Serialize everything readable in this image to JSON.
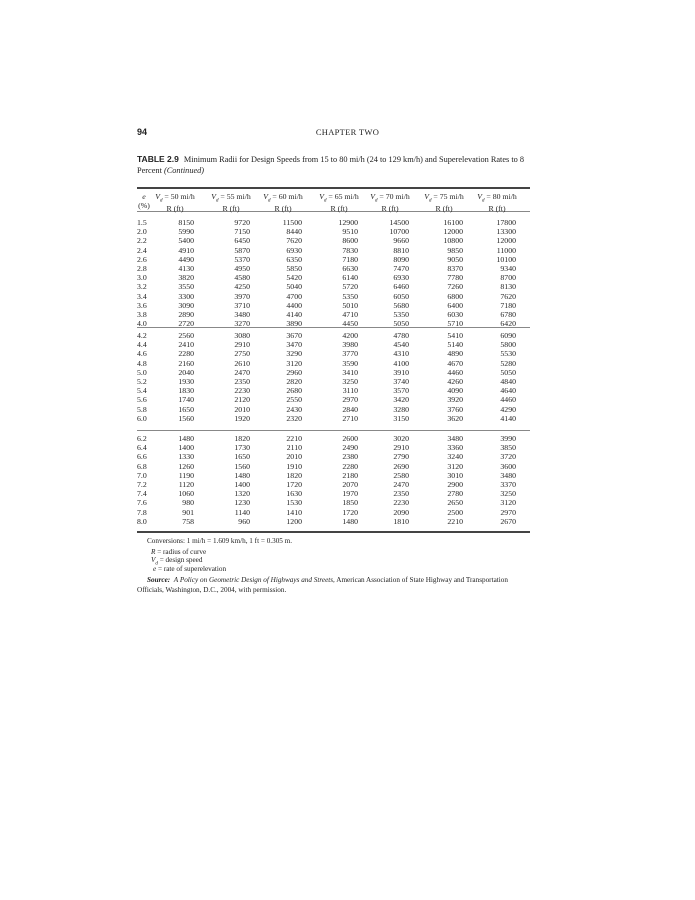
{
  "page_number": "94",
  "running_head": "CHAPTER TWO",
  "table": {
    "label": "TABLE 2.9",
    "caption": "Minimum Radii for Design Speeds from 15 to 80 mi/h (24 to 129 km/h) and Superelevation Rates to 8 Percent",
    "caption_suffix": "(Continued)",
    "first_header": {
      "top": "e",
      "bottom": "(%)"
    },
    "columns": [
      {
        "speed": "= 50 mi/h",
        "unit": "R (ft)"
      },
      {
        "speed": "= 55 mi/h",
        "unit": "R (ft)"
      },
      {
        "speed": "= 60 mi/h",
        "unit": "R (ft)"
      },
      {
        "speed": "= 65 mi/h",
        "unit": "R (ft)"
      },
      {
        "speed": "= 70 mi/h",
        "unit": "R (ft)"
      },
      {
        "speed": "= 75 mi/h",
        "unit": "R (ft)"
      },
      {
        "speed": "= 80 mi/h",
        "unit": "R (ft)"
      }
    ],
    "groups": [
      [
        [
          "1.5",
          "8150",
          "9720",
          "11500",
          "12900",
          "14500",
          "16100",
          "17800"
        ],
        [
          "2.0",
          "5990",
          "7150",
          "8440",
          "9510",
          "10700",
          "12000",
          "13300"
        ],
        [
          "2.2",
          "5400",
          "6450",
          "7620",
          "8600",
          "9660",
          "10800",
          "12000"
        ],
        [
          "2.4",
          "4910",
          "5870",
          "6930",
          "7830",
          "8810",
          "9850",
          "11000"
        ],
        [
          "2.6",
          "4490",
          "5370",
          "6350",
          "7180",
          "8090",
          "9050",
          "10100"
        ],
        [
          "2.8",
          "4130",
          "4950",
          "5850",
          "6630",
          "7470",
          "8370",
          "9340"
        ],
        [
          "3.0",
          "3820",
          "4580",
          "5420",
          "6140",
          "6930",
          "7780",
          "8700"
        ],
        [
          "3.2",
          "3550",
          "4250",
          "5040",
          "5720",
          "6460",
          "7260",
          "8130"
        ],
        [
          "3.4",
          "3300",
          "3970",
          "4700",
          "5350",
          "6050",
          "6800",
          "7620"
        ],
        [
          "3.6",
          "3090",
          "3710",
          "4400",
          "5010",
          "5680",
          "6400",
          "7180"
        ],
        [
          "3.8",
          "2890",
          "3480",
          "4140",
          "4710",
          "5350",
          "6030",
          "6780"
        ],
        [
          "4.0",
          "2720",
          "3270",
          "3890",
          "4450",
          "5050",
          "5710",
          "6420"
        ]
      ],
      [
        [
          "4.2",
          "2560",
          "3080",
          "3670",
          "4200",
          "4780",
          "5410",
          "6090"
        ],
        [
          "4.4",
          "2410",
          "2910",
          "3470",
          "3980",
          "4540",
          "5140",
          "5800"
        ],
        [
          "4.6",
          "2280",
          "2750",
          "3290",
          "3770",
          "4310",
          "4890",
          "5530"
        ],
        [
          "4.8",
          "2160",
          "2610",
          "3120",
          "3590",
          "4100",
          "4670",
          "5280"
        ],
        [
          "5.0",
          "2040",
          "2470",
          "2960",
          "3410",
          "3910",
          "4460",
          "5050"
        ],
        [
          "5.2",
          "1930",
          "2350",
          "2820",
          "3250",
          "3740",
          "4260",
          "4840"
        ],
        [
          "5.4",
          "1830",
          "2230",
          "2680",
          "3110",
          "3570",
          "4090",
          "4640"
        ],
        [
          "5.6",
          "1740",
          "2120",
          "2550",
          "2970",
          "3420",
          "3920",
          "4460"
        ],
        [
          "5.8",
          "1650",
          "2010",
          "2430",
          "2840",
          "3280",
          "3760",
          "4290"
        ],
        [
          "6.0",
          "1560",
          "1920",
          "2320",
          "2710",
          "3150",
          "3620",
          "4140"
        ]
      ],
      [
        [
          "6.2",
          "1480",
          "1820",
          "2210",
          "2600",
          "3020",
          "3480",
          "3990"
        ],
        [
          "6.4",
          "1400",
          "1730",
          "2110",
          "2490",
          "2910",
          "3360",
          "3850"
        ],
        [
          "6.6",
          "1330",
          "1650",
          "2010",
          "2380",
          "2790",
          "3240",
          "3720"
        ],
        [
          "6.8",
          "1260",
          "1560",
          "1910",
          "2280",
          "2690",
          "3120",
          "3600"
        ],
        [
          "7.0",
          "1190",
          "1480",
          "1820",
          "2180",
          "2580",
          "3010",
          "3480"
        ],
        [
          "7.2",
          "1120",
          "1400",
          "1720",
          "2070",
          "2470",
          "2900",
          "3370"
        ],
        [
          "7.4",
          "1060",
          "1320",
          "1630",
          "1970",
          "2350",
          "2780",
          "3250"
        ],
        [
          "7.6",
          "980",
          "1230",
          "1530",
          "1850",
          "2230",
          "2650",
          "3120"
        ],
        [
          "7.8",
          "901",
          "1140",
          "1410",
          "1720",
          "2090",
          "2500",
          "2970"
        ],
        [
          "8.0",
          "758",
          "960",
          "1200",
          "1480",
          "1810",
          "2210",
          "2670"
        ]
      ]
    ]
  },
  "notes": {
    "conversions": "Conversions: 1 mi/h = 1.609 km/h, 1 ft = 0.305 m.",
    "r_def": "= radius of curve",
    "vd_def": "= design speed",
    "e_def": "= rate of superelevation",
    "source_label": "Source:",
    "source_title": "A Policy on Geometric Design of Highways and Streets,",
    "source_rest": "American Association of State Highway and Transportation Officials, Washington, D.C., 2004, with permission."
  }
}
